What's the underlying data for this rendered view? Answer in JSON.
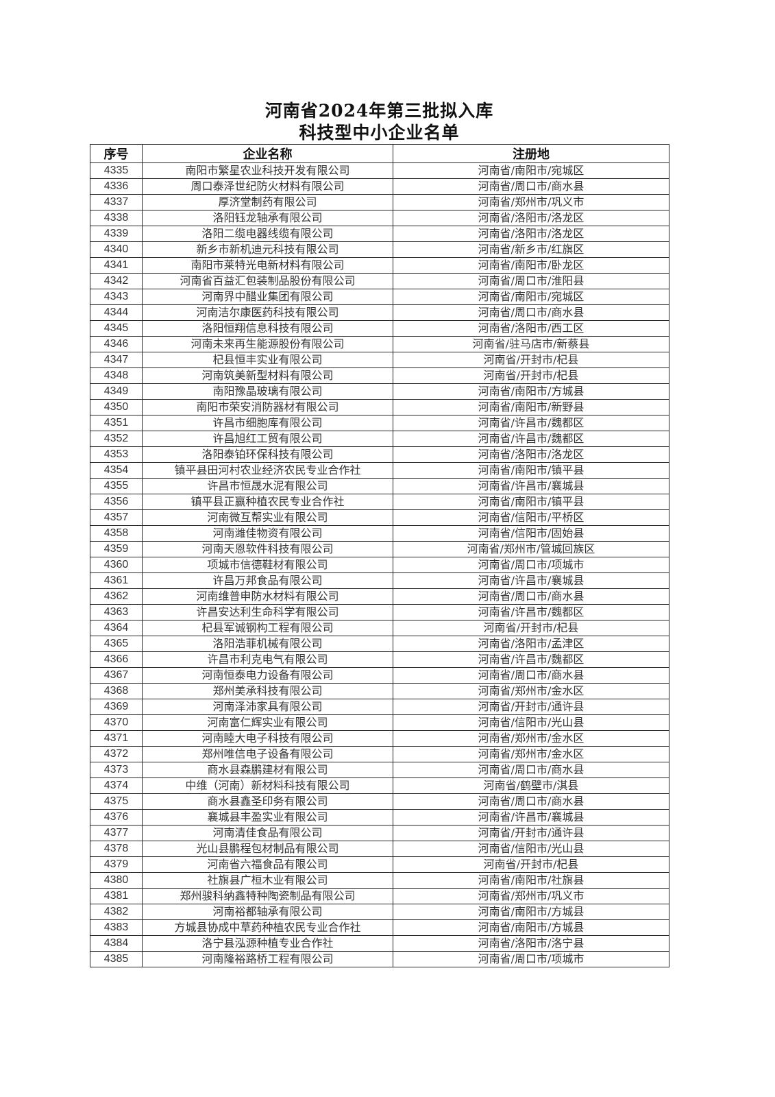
{
  "document": {
    "title_line1": "河南省2024年第三批拟入库",
    "title_line2": "科技型中小企业名单"
  },
  "table": {
    "headers": [
      "序号",
      "企业名称",
      "注册地"
    ],
    "rows": [
      [
        "4335",
        "南阳市繁星农业科技开发有限公司",
        "河南省/南阳市/宛城区"
      ],
      [
        "4336",
        "周口泰泽世纪防火材料有限公司",
        "河南省/周口市/商水县"
      ],
      [
        "4337",
        "厚济堂制药有限公司",
        "河南省/郑州市/巩义市"
      ],
      [
        "4338",
        "洛阳钰龙轴承有限公司",
        "河南省/洛阳市/洛龙区"
      ],
      [
        "4339",
        "洛阳二缆电器线缆有限公司",
        "河南省/洛阳市/洛龙区"
      ],
      [
        "4340",
        "新乡市新机迪元科技有限公司",
        "河南省/新乡市/红旗区"
      ],
      [
        "4341",
        "南阳市莱特光电新材料有限公司",
        "河南省/南阳市/卧龙区"
      ],
      [
        "4342",
        "河南省百益汇包装制品股份有限公司",
        "河南省/周口市/淮阳县"
      ],
      [
        "4343",
        "河南界中醋业集团有限公司",
        "河南省/南阳市/宛城区"
      ],
      [
        "4344",
        "河南洁尔康医药科技有限公司",
        "河南省/周口市/商水县"
      ],
      [
        "4345",
        "洛阳恒翔信息科技有限公司",
        "河南省/洛阳市/西工区"
      ],
      [
        "4346",
        "河南未来再生能源股份有限公司",
        "河南省/驻马店市/新蔡县"
      ],
      [
        "4347",
        "杞县恒丰实业有限公司",
        "河南省/开封市/杞县"
      ],
      [
        "4348",
        "河南筑美新型材料有限公司",
        "河南省/开封市/杞县"
      ],
      [
        "4349",
        "南阳豫晶玻璃有限公司",
        "河南省/南阳市/方城县"
      ],
      [
        "4350",
        "南阳市荣安消防器材有限公司",
        "河南省/南阳市/新野县"
      ],
      [
        "4351",
        "许昌市细胞库有限公司",
        "河南省/许昌市/魏都区"
      ],
      [
        "4352",
        "许昌旭红工贸有限公司",
        "河南省/许昌市/魏都区"
      ],
      [
        "4353",
        "洛阳泰铂环保科技有限公司",
        "河南省/洛阳市/洛龙区"
      ],
      [
        "4354",
        "镇平县田河村农业经济农民专业合作社",
        "河南省/南阳市/镇平县"
      ],
      [
        "4355",
        "许昌市恒晟水泥有限公司",
        "河南省/许昌市/襄城县"
      ],
      [
        "4356",
        "镇平县正赢种植农民专业合作社",
        "河南省/南阳市/镇平县"
      ],
      [
        "4357",
        "河南微互帮实业有限公司",
        "河南省/信阳市/平桥区"
      ],
      [
        "4358",
        "河南潍佳物资有限公司",
        "河南省/信阳市/固始县"
      ],
      [
        "4359",
        "河南天恩软件科技有限公司",
        "河南省/郑州市/管城回族区"
      ],
      [
        "4360",
        "项城市信德鞋材有限公司",
        "河南省/周口市/项城市"
      ],
      [
        "4361",
        "许昌万邦食品有限公司",
        "河南省/许昌市/襄城县"
      ],
      [
        "4362",
        "河南维普申防水材料有限公司",
        "河南省/周口市/商水县"
      ],
      [
        "4363",
        "许昌安达利生命科学有限公司",
        "河南省/许昌市/魏都区"
      ],
      [
        "4364",
        "杞县军诚钢构工程有限公司",
        "河南省/开封市/杞县"
      ],
      [
        "4365",
        "洛阳浩菲机械有限公司",
        "河南省/洛阳市/孟津区"
      ],
      [
        "4366",
        "许昌市利克电气有限公司",
        "河南省/许昌市/魏都区"
      ],
      [
        "4367",
        "河南恒泰电力设备有限公司",
        "河南省/周口市/商水县"
      ],
      [
        "4368",
        "郑州美承科技有限公司",
        "河南省/郑州市/金水区"
      ],
      [
        "4369",
        "河南泽沛家具有限公司",
        "河南省/开封市/通许县"
      ],
      [
        "4370",
        "河南富仁辉实业有限公司",
        "河南省/信阳市/光山县"
      ],
      [
        "4371",
        "河南睦大电子科技有限公司",
        "河南省/郑州市/金水区"
      ],
      [
        "4372",
        "郑州唯信电子设备有限公司",
        "河南省/郑州市/金水区"
      ],
      [
        "4373",
        "商水县森鹏建材有限公司",
        "河南省/周口市/商水县"
      ],
      [
        "4374",
        "中维（河南）新材料科技有限公司",
        "河南省/鹤壁市/淇县"
      ],
      [
        "4375",
        "商水县鑫圣印务有限公司",
        "河南省/周口市/商水县"
      ],
      [
        "4376",
        "襄城县丰盈实业有限公司",
        "河南省/许昌市/襄城县"
      ],
      [
        "4377",
        "河南清佳食品有限公司",
        "河南省/开封市/通许县"
      ],
      [
        "4378",
        "光山县鹏程包材制品有限公司",
        "河南省/信阳市/光山县"
      ],
      [
        "4379",
        "河南省六福食品有限公司",
        "河南省/开封市/杞县"
      ],
      [
        "4380",
        "社旗县广桓木业有限公司",
        "河南省/南阳市/社旗县"
      ],
      [
        "4381",
        "郑州骏科纳鑫特种陶瓷制品有限公司",
        "河南省/郑州市/巩义市"
      ],
      [
        "4382",
        "河南裕都轴承有限公司",
        "河南省/南阳市/方城县"
      ],
      [
        "4383",
        "方城县协成中草药种植农民专业合作社",
        "河南省/南阳市/方城县"
      ],
      [
        "4384",
        "洛宁县泓源种植专业合作社",
        "河南省/洛阳市/洛宁县"
      ],
      [
        "4385",
        "河南隆裕路桥工程有限公司",
        "河南省/周口市/项城市"
      ]
    ]
  }
}
